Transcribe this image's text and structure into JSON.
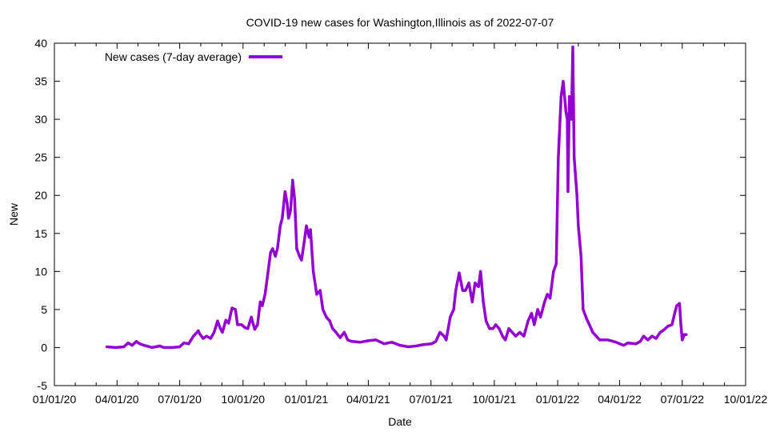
{
  "chart_data": {
    "type": "line",
    "title": "COVID-19 new cases for Washington,Illinois as of 2022-07-07",
    "xlabel": "Date",
    "ylabel": "New",
    "x_start_date": "2020-01-01",
    "x_range_days": [
      0,
      1004
    ],
    "ylim": [
      -5,
      40
    ],
    "y_ticks": [
      -5,
      0,
      5,
      10,
      15,
      20,
      25,
      30,
      35,
      40
    ],
    "x_ticks": [
      {
        "label": "01/01/20",
        "day": 0
      },
      {
        "label": "04/01/20",
        "day": 91
      },
      {
        "label": "07/01/20",
        "day": 182
      },
      {
        "label": "10/01/20",
        "day": 274
      },
      {
        "label": "01/01/21",
        "day": 366
      },
      {
        "label": "04/01/21",
        "day": 456
      },
      {
        "label": "07/01/21",
        "day": 547
      },
      {
        "label": "10/01/21",
        "day": 639
      },
      {
        "label": "01/01/22",
        "day": 731
      },
      {
        "label": "04/01/22",
        "day": 821
      },
      {
        "label": "07/01/22",
        "day": 912
      },
      {
        "label": "10/01/22",
        "day": 1004
      }
    ],
    "legend_position": "top-left",
    "grid": false,
    "series": [
      {
        "name": "New cases (7-day average)",
        "color": "#9400d3",
        "days_since_start": [
          76,
          89,
          101,
          107,
          113,
          119,
          124,
          130,
          142,
          153,
          159,
          171,
          182,
          188,
          195,
          202,
          209,
          211,
          216,
          221,
          227,
          232,
          237,
          241,
          244,
          249,
          253,
          258,
          263,
          266,
          272,
          277,
          281,
          286,
          291,
          295,
          299,
          302,
          306,
          309,
          314,
          317,
          321,
          324,
          328,
          331,
          335,
          338,
          340,
          343,
          346,
          349,
          352,
          356,
          359,
          363,
          366,
          370,
          372,
          376,
          381,
          386,
          390,
          395,
          400,
          404,
          409,
          415,
          421,
          426,
          432,
          444,
          456,
          467,
          479,
          490,
          502,
          514,
          525,
          537,
          548,
          554,
          560,
          566,
          569,
          575,
          580,
          583,
          588,
          593,
          597,
          602,
          607,
          611,
          616,
          619,
          623,
          627,
          632,
          637,
          641,
          646,
          651,
          655,
          660,
          665,
          670,
          676,
          682,
          688,
          693,
          697,
          702,
          706,
          712,
          716,
          720,
          725,
          729,
          732,
          736,
          739,
          743,
          745,
          746,
          748,
          751,
          753,
          755,
          759,
          761,
          765,
          768,
          773,
          777,
          782,
          787,
          792,
          804,
          816,
          821,
          827,
          833,
          845,
          851,
          856,
          862,
          868,
          874,
          880,
          885,
          891,
          897,
          901,
          904,
          908,
          910,
          912,
          915,
          918
        ],
        "values": [
          0.1,
          0,
          0.1,
          0.6,
          0.3,
          0.8,
          0.5,
          0.3,
          0,
          0.2,
          0,
          0,
          0.1,
          0.6,
          0.5,
          1.5,
          2.2,
          1.8,
          1.2,
          1.5,
          1.2,
          2,
          3.5,
          2.5,
          2,
          3.6,
          3.2,
          5.2,
          5,
          3,
          3,
          2.6,
          2.5,
          4,
          2.4,
          3,
          6,
          5.5,
          7,
          9,
          12.5,
          13,
          12,
          13,
          16,
          17,
          20.5,
          19,
          17,
          18,
          22,
          19.5,
          13,
          12,
          11.5,
          14,
          16,
          14.5,
          15.5,
          10,
          7,
          7.5,
          5,
          4,
          3.5,
          2.5,
          2,
          1.3,
          2,
          1,
          0.8,
          0.7,
          0.9,
          1,
          0.5,
          0.7,
          0.3,
          0.1,
          0.2,
          0.4,
          0.5,
          0.8,
          2,
          1.5,
          1,
          4,
          5,
          7.5,
          9.8,
          7.5,
          7.5,
          8.5,
          6,
          8.5,
          8,
          10,
          6,
          3.5,
          2.5,
          2.5,
          3,
          2.5,
          1.5,
          1,
          2.5,
          2,
          1.5,
          2,
          1.5,
          3.5,
          4.5,
          3,
          5,
          4,
          6,
          7,
          6.5,
          10,
          11,
          25,
          33,
          35,
          31,
          30,
          20.5,
          33,
          30,
          39.5,
          25,
          20,
          16,
          12,
          5,
          3.8,
          3,
          2,
          1.5,
          1,
          1,
          0.7,
          0.5,
          0.3,
          0.6,
          0.5,
          0.8,
          1.5,
          1,
          1.5,
          1.2,
          2,
          2.3,
          2.8,
          3,
          4.5,
          5.5,
          5.8,
          3,
          1,
          1.7,
          1.7
        ]
      }
    ]
  }
}
